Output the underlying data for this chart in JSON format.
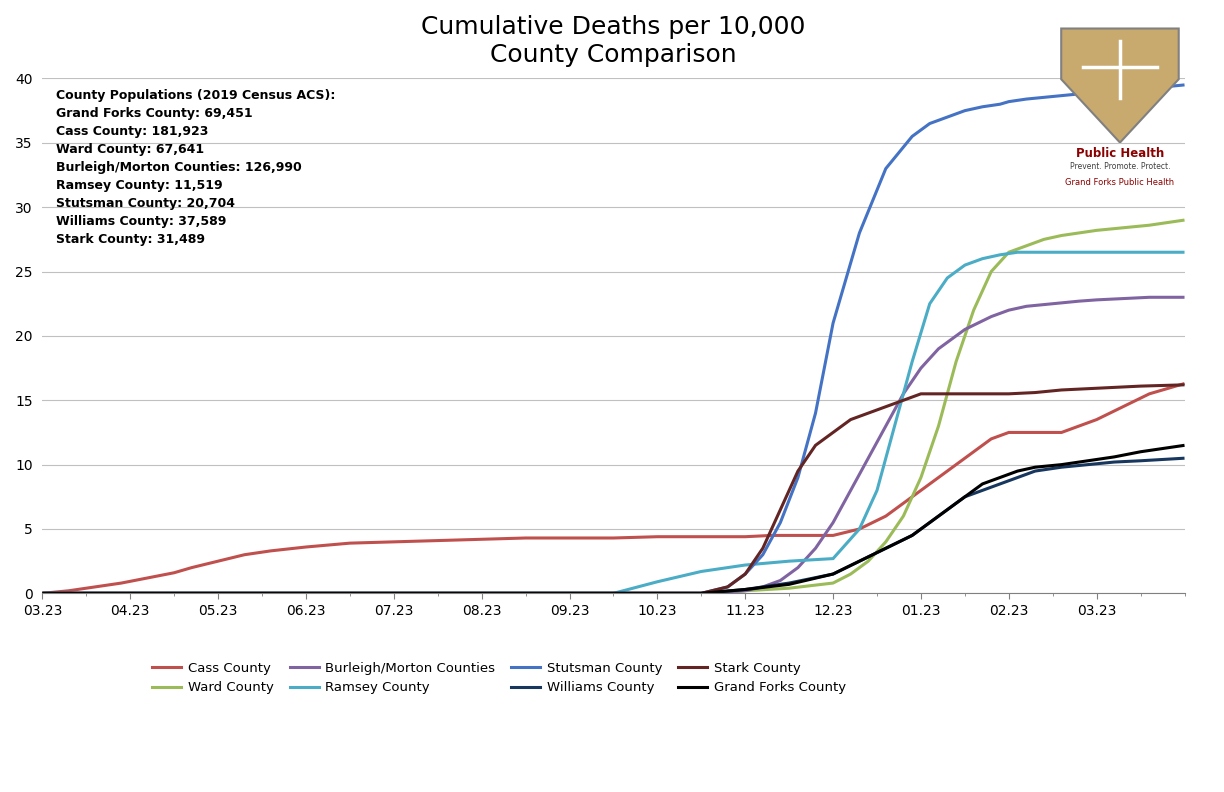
{
  "title": "Cumulative Deaths per 10,000\nCounty Comparison",
  "ylim": [
    0,
    40
  ],
  "yticks": [
    0,
    5,
    10,
    15,
    20,
    25,
    30,
    35,
    40
  ],
  "xtick_labels": [
    "03.23",
    "04.23",
    "05.23",
    "06.23",
    "07.23",
    "08.23",
    "09.23",
    "10.23",
    "11.23",
    "12.23",
    "01.23",
    "02.23",
    "03.23"
  ],
  "annotation_text": "County Populations (2019 Census ACS):\nGrand Forks County: 69,451\nCass County: 181,923\nWard County: 67,641\nBurleigh/Morton Counties: 126,990\nRamsey County: 11,519\nStutsman County: 20,704\nWilliams County: 37,589\nStark County: 31,489",
  "counties": {
    "Cass County": {
      "color": "#C0504D",
      "data_x": [
        0,
        0.3,
        0.6,
        0.9,
        1.2,
        1.5,
        1.7,
        2.0,
        2.3,
        2.6,
        3.0,
        3.5,
        4.0,
        4.5,
        5.0,
        5.5,
        6.0,
        6.5,
        7.0,
        7.5,
        8.0,
        8.3,
        8.6,
        9.0,
        9.3,
        9.6,
        9.8,
        10.0,
        10.3,
        10.6,
        10.8,
        11.0,
        11.3,
        11.6,
        11.8,
        12.0,
        12.3,
        12.6,
        13.0
      ],
      "data_y": [
        0,
        0.2,
        0.5,
        0.8,
        1.2,
        1.6,
        2.0,
        2.5,
        3.0,
        3.3,
        3.6,
        3.9,
        4.0,
        4.1,
        4.2,
        4.3,
        4.3,
        4.3,
        4.4,
        4.4,
        4.4,
        4.5,
        4.5,
        4.5,
        5.0,
        6.0,
        7.0,
        8.0,
        9.5,
        11.0,
        12.0,
        12.5,
        12.5,
        12.5,
        13.0,
        13.5,
        14.5,
        15.5,
        16.3
      ]
    },
    "Ward County": {
      "color": "#9BBB59",
      "data_x": [
        0,
        6.0,
        6.5,
        7.0,
        7.5,
        8.0,
        8.5,
        9.0,
        9.2,
        9.4,
        9.6,
        9.8,
        10.0,
        10.2,
        10.4,
        10.6,
        10.8,
        11.0,
        11.2,
        11.4,
        11.6,
        11.8,
        12.0,
        12.3,
        12.6,
        13.0
      ],
      "data_y": [
        0,
        0,
        0,
        0,
        0,
        0.2,
        0.4,
        0.8,
        1.5,
        2.5,
        4.0,
        6.0,
        9.0,
        13.0,
        18.0,
        22.0,
        25.0,
        26.5,
        27.0,
        27.5,
        27.8,
        28.0,
        28.2,
        28.4,
        28.6,
        29.0
      ]
    },
    "Burleigh/Morton Counties": {
      "color": "#8064A2",
      "data_x": [
        0,
        7.0,
        7.5,
        8.0,
        8.2,
        8.4,
        8.6,
        8.8,
        9.0,
        9.2,
        9.4,
        9.6,
        9.8,
        10.0,
        10.2,
        10.5,
        10.8,
        11.0,
        11.2,
        11.5,
        11.8,
        12.0,
        12.3,
        12.6,
        13.0
      ],
      "data_y": [
        0,
        0,
        0,
        0.2,
        0.5,
        1.0,
        2.0,
        3.5,
        5.5,
        8.0,
        10.5,
        13.0,
        15.5,
        17.5,
        19.0,
        20.5,
        21.5,
        22.0,
        22.3,
        22.5,
        22.7,
        22.8,
        22.9,
        23.0,
        23.0
      ]
    },
    "Ramsey County": {
      "color": "#4BACC6",
      "data_x": [
        0,
        5.0,
        5.5,
        6.0,
        6.5,
        7.0,
        7.5,
        8.0,
        8.5,
        9.0,
        9.3,
        9.5,
        9.7,
        9.9,
        10.1,
        10.3,
        10.5,
        10.7,
        10.9,
        11.1,
        11.3,
        11.5,
        11.7,
        12.0,
        12.5,
        13.0
      ],
      "data_y": [
        0,
        0,
        0,
        0,
        0,
        0.9,
        1.7,
        2.2,
        2.5,
        2.7,
        5.0,
        8.0,
        13.0,
        18.0,
        22.5,
        24.5,
        25.5,
        26.0,
        26.3,
        26.5,
        26.5,
        26.5,
        26.5,
        26.5,
        26.5,
        26.5
      ]
    },
    "Stutsman County": {
      "color": "#4472C4",
      "data_x": [
        0,
        7.5,
        7.8,
        8.0,
        8.2,
        8.4,
        8.6,
        8.8,
        9.0,
        9.3,
        9.6,
        9.9,
        10.1,
        10.3,
        10.5,
        10.7,
        10.9,
        11.0,
        11.2,
        11.5,
        11.8,
        12.0,
        12.3,
        12.5,
        12.7,
        13.0
      ],
      "data_y": [
        0,
        0,
        0.5,
        1.5,
        3.0,
        5.5,
        9.0,
        14.0,
        21.0,
        28.0,
        33.0,
        35.5,
        36.5,
        37.0,
        37.5,
        37.8,
        38.0,
        38.2,
        38.4,
        38.6,
        38.8,
        39.0,
        39.1,
        39.2,
        39.3,
        39.5
      ]
    },
    "Williams County": {
      "color": "#17375E",
      "data_x": [
        0,
        6.5,
        7.0,
        7.5,
        8.0,
        8.5,
        9.0,
        9.3,
        9.6,
        9.9,
        10.1,
        10.3,
        10.5,
        10.7,
        10.9,
        11.1,
        11.3,
        11.6,
        11.9,
        12.2,
        12.5,
        13.0
      ],
      "data_y": [
        0,
        0,
        0,
        0,
        0.3,
        0.8,
        1.5,
        2.5,
        3.5,
        4.5,
        5.5,
        6.5,
        7.5,
        8.0,
        8.5,
        9.0,
        9.5,
        9.8,
        10.0,
        10.2,
        10.3,
        10.5
      ]
    },
    "Stark County": {
      "color": "#632523",
      "data_x": [
        0,
        7.5,
        7.8,
        8.0,
        8.2,
        8.4,
        8.6,
        8.8,
        9.0,
        9.2,
        9.4,
        9.6,
        9.8,
        10.0,
        10.2,
        10.5,
        10.8,
        11.0,
        11.3,
        11.6,
        11.9,
        12.2,
        12.5,
        13.0
      ],
      "data_y": [
        0,
        0,
        0.5,
        1.5,
        3.5,
        6.5,
        9.5,
        11.5,
        12.5,
        13.5,
        14.0,
        14.5,
        15.0,
        15.5,
        15.5,
        15.5,
        15.5,
        15.5,
        15.6,
        15.8,
        15.9,
        16.0,
        16.1,
        16.2
      ]
    },
    "Grand Forks County": {
      "color": "#000000",
      "data_x": [
        0,
        7.0,
        7.5,
        8.0,
        8.5,
        9.0,
        9.3,
        9.6,
        9.9,
        10.1,
        10.3,
        10.5,
        10.7,
        10.9,
        11.1,
        11.3,
        11.6,
        11.9,
        12.2,
        12.5,
        13.0
      ],
      "data_y": [
        0,
        0,
        0,
        0.3,
        0.7,
        1.5,
        2.5,
        3.5,
        4.5,
        5.5,
        6.5,
        7.5,
        8.5,
        9.0,
        9.5,
        9.8,
        10.0,
        10.3,
        10.6,
        11.0,
        11.5
      ]
    }
  },
  "legend_order": [
    "Cass County",
    "Ward County",
    "Burleigh/Morton Counties",
    "Ramsey County",
    "Stutsman County",
    "Williams County",
    "Stark County",
    "Grand Forks County"
  ],
  "background_color": "#FFFFFF",
  "grid_color": "#C0C0C0",
  "title_fontsize": 18,
  "annotation_fontsize": 9,
  "tick_fontsize": 10
}
